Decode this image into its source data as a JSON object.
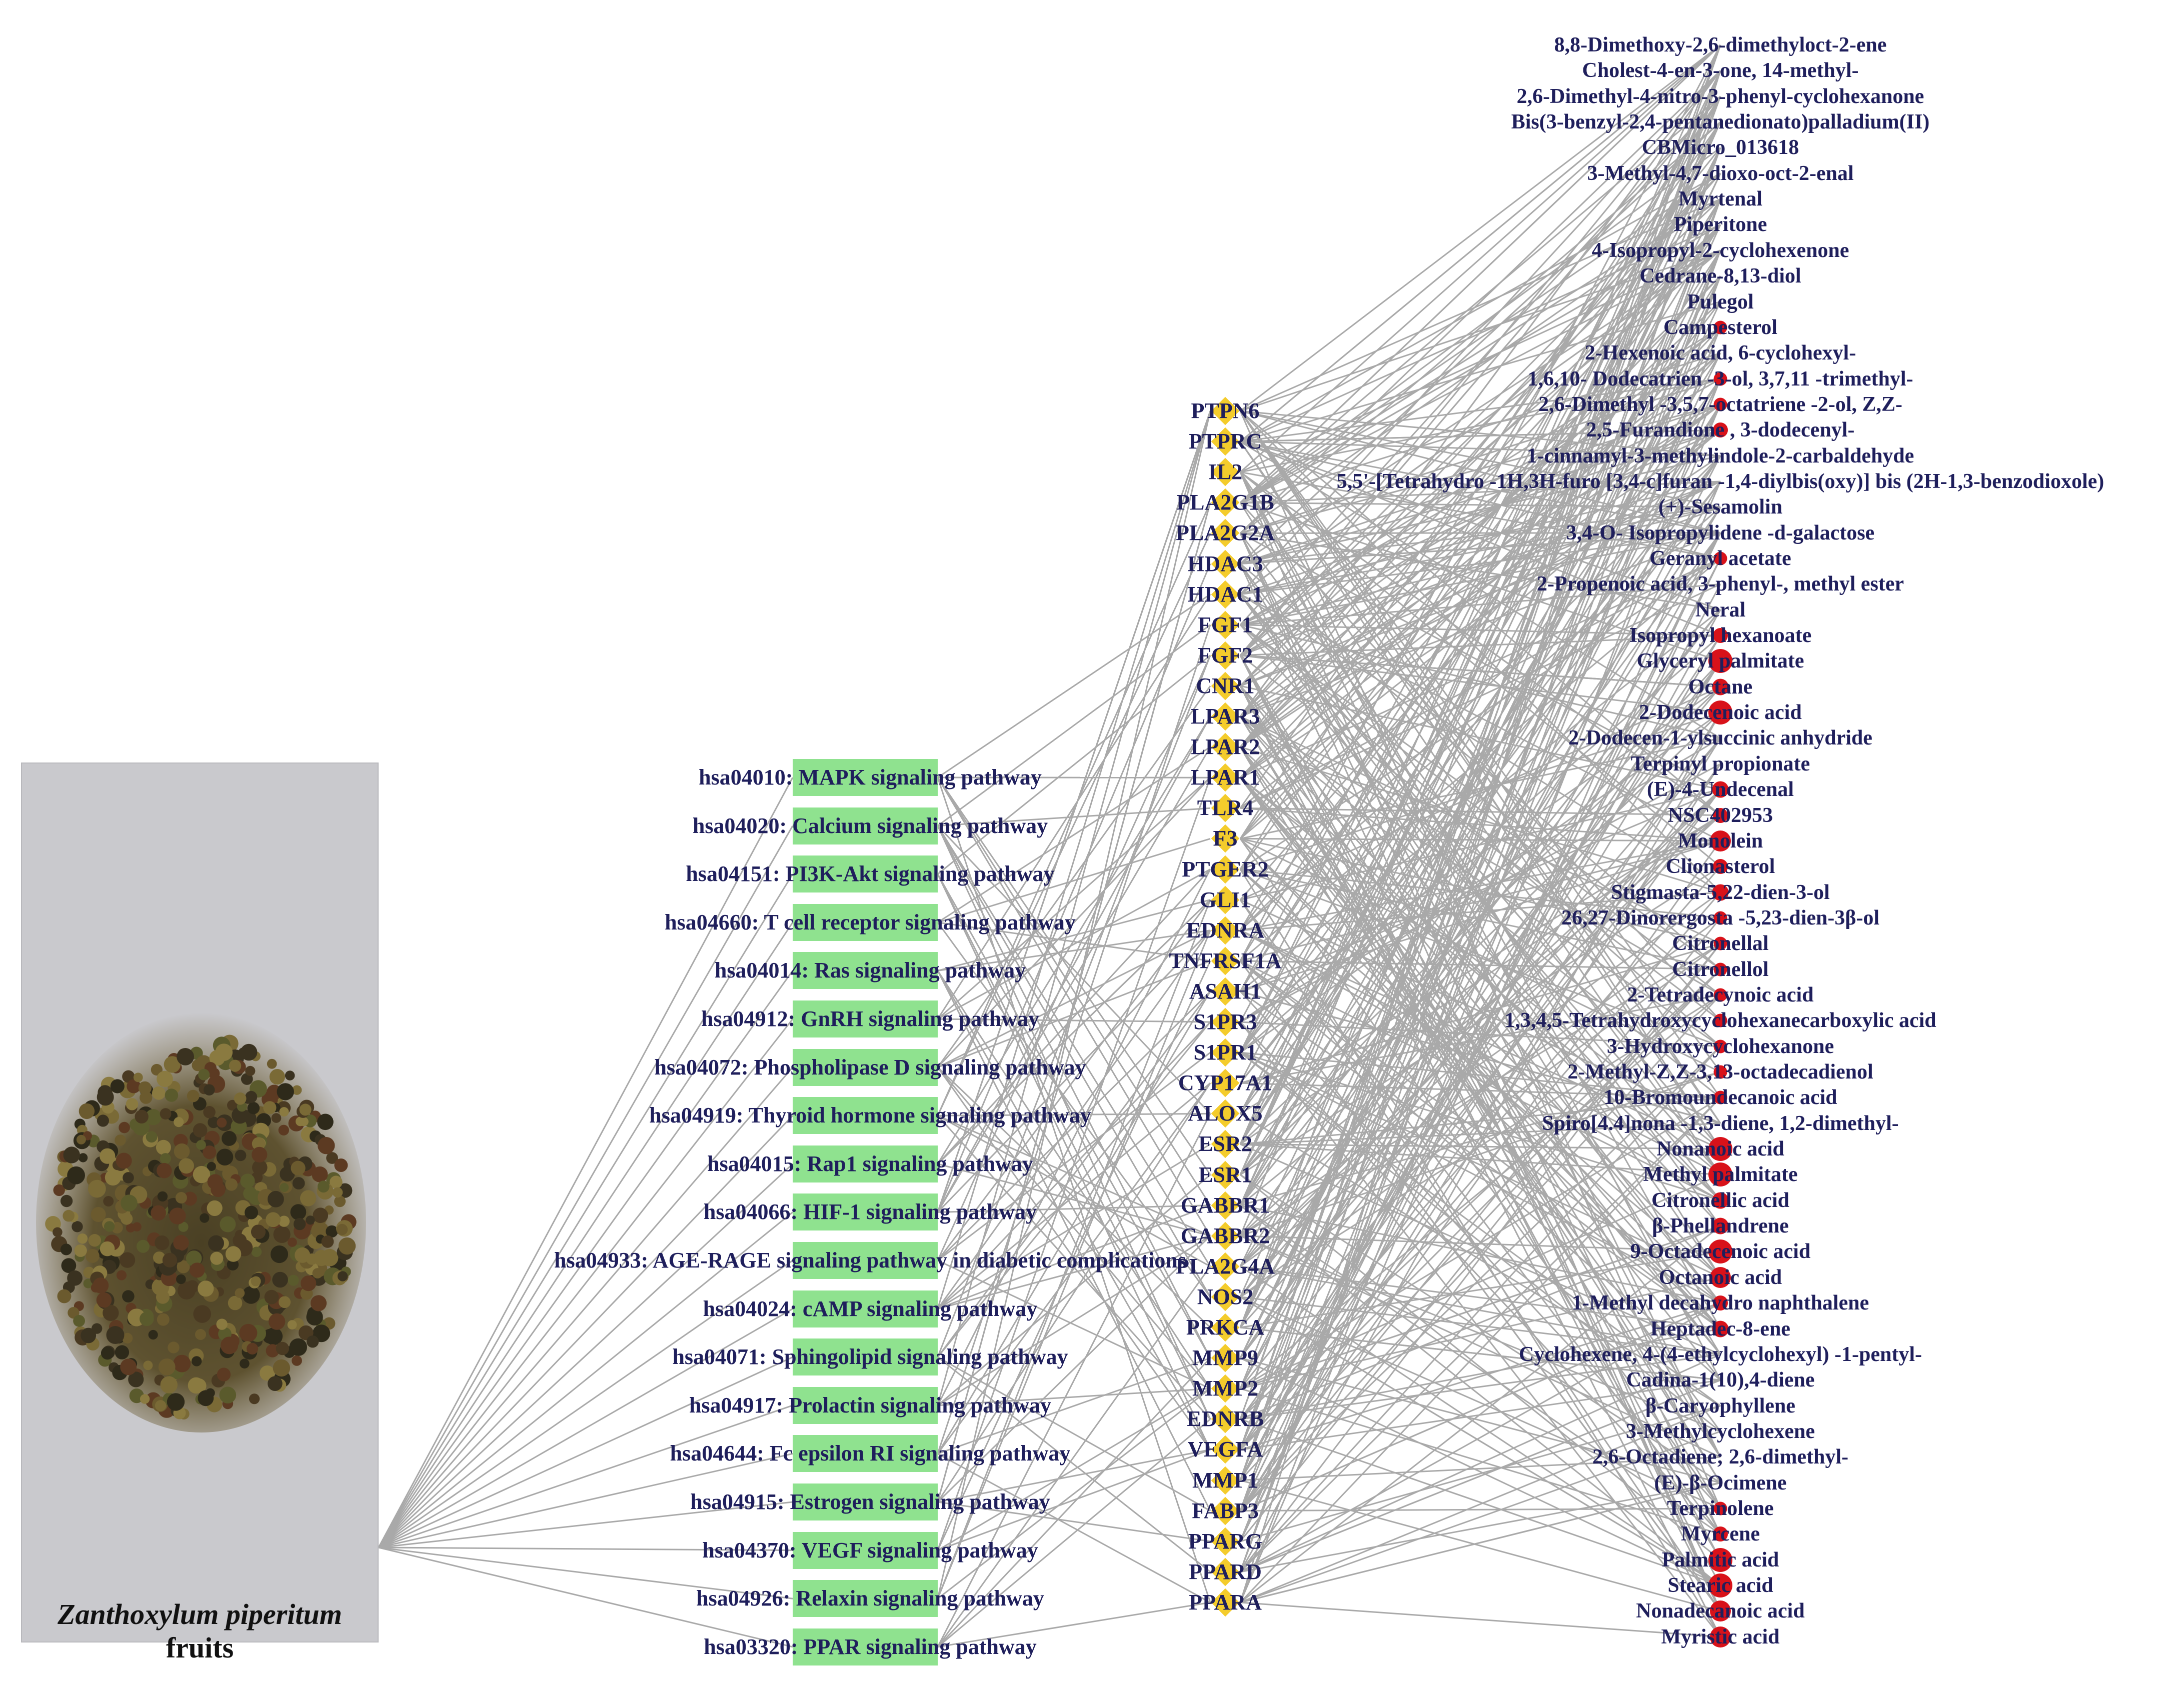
{
  "photo": {
    "caption_species": "Zanthoxylum piperitum",
    "caption_rest": " fruits",
    "icon": "dried-fruit-photo"
  },
  "colors": {
    "edge": "#a9a9a9",
    "pathway_node": "#8fe28f",
    "target_node": "#f4cc2c",
    "compound_node": "#d8121a",
    "label": "#1f1f5c"
  },
  "pathways": [
    "hsa04010: MAPK signaling pathway",
    "hsa04020: Calcium signaling pathway",
    "hsa04151: PI3K-Akt signaling pathway",
    "hsa04660: T cell receptor signaling pathway",
    "hsa04014: Ras signaling pathway",
    "hsa04912: GnRH signaling pathway",
    "hsa04072: Phospholipase D signaling pathway",
    "hsa04919: Thyroid hormone signaling pathway",
    "hsa04015: Rap1 signaling pathway",
    "hsa04066: HIF-1 signaling pathway",
    "hsa04933: AGE-RAGE signaling pathway in diabetic complications",
    "hsa04024: cAMP signaling pathway",
    "hsa04071: Sphingolipid signaling pathway",
    "hsa04917: Prolactin signaling pathway",
    "hsa04644: Fc epsilon RI signaling pathway",
    "hsa04915: Estrogen signaling pathway",
    "hsa04370: VEGF signaling pathway",
    "hsa04926: Relaxin signaling pathway",
    "hsa03320: PPAR signaling pathway"
  ],
  "targets": [
    "PTPN6",
    "PTPRC",
    "IL2",
    "PLA2G1B",
    "PLA2G2A",
    "HDAC3",
    "HDAC1",
    "FGF1",
    "FGF2",
    "CNR1",
    "LPAR3",
    "LPAR2",
    "LPAR1",
    "TLR4",
    "F3",
    "PTGER2",
    "GLI1",
    "EDNRA",
    "TNFRSF1A",
    "ASAH1",
    "S1PR3",
    "S1PR1",
    "CYP17A1",
    "ALOX5",
    "ESR2",
    "ESR1",
    "GABBR1",
    "GABBR2",
    "PLA2G4A",
    "NOS2",
    "PRKCA",
    "MMP9",
    "MMP2",
    "EDNRB",
    "VEGFA",
    "MMP1",
    "FABP3",
    "PPARG",
    "PPARD",
    "PPARA"
  ],
  "compounds": [
    "8,8-Dimethoxy-2,6-dimethyloct-2-ene",
    "Cholest-4-en-3-one, 14-methyl-",
    "2,6-Dimethyl-4-nitro-3-phenyl-cyclohexanone",
    "Bis(3-benzyl-2,4-pentanedionato)palladium(II)",
    "CBMicro_013618",
    "3-Methyl-4,7-dioxo-oct-2-enal",
    "Myrtenal",
    "Piperitone",
    "4-Isopropyl-2-cyclohexenone",
    "Cedrane-8,13-diol",
    "Pulegol",
    "Campesterol",
    "2-Hexenoic acid, 6-cyclohexyl-",
    "1,6,10- Dodecatrien -3-ol, 3,7,11 -trimethyl-",
    "2,6-Dimethyl -3,5,7-octatriene -2-ol, Z,Z-",
    "2,5-Furandione , 3-dodecenyl-",
    "1-cinnamyl-3-methylindole-2-carbaldehyde",
    "5,5'-[Tetrahydro -1H,3H-furo [3,4-c]furan -1,4-diylbis(oxy)] bis (2H-1,3-benzodioxole)",
    "(+)-Sesamolin",
    "3,4-O- Isopropylidene -d-galactose",
    "Geranyl acetate",
    "2-Propenoic acid, 3-phenyl-, methyl ester",
    "Neral",
    "Isopropyl hexanoate",
    "Glyceryl palmitate",
    "Octane",
    "2-Dodecenoic acid",
    "2-Dodecen-1-ylsuccinic anhydride",
    "Terpinyl propionate",
    "(E)-4-Undecenal",
    "NSC402953",
    "Monolein",
    "Clionasterol",
    "Stigmasta-5,22-dien-3-ol",
    "26,27-Dinorergosta -5,23-dien-3β-ol",
    "Citronellal",
    "Citronellol",
    "2-Tetradecynoic acid",
    "1,3,4,5-Tetrahydroxycyclohexanecarboxylic acid",
    "3-Hydroxycyclohexanone",
    "2-Methyl-Z,Z-3,13-octadecadienol",
    "10-Bromoundecanoic acid",
    "Spiro[4.4]nona -1,3-diene, 1,2-dimethyl-",
    "Nonanoic acid",
    "Methyl palmitate",
    "Citronellic acid",
    "β-Phellandrene",
    "9-Octadecenoic acid",
    "Octanoic acid",
    "1-Methyl decahydro naphthalene",
    "Heptadec-8-ene",
    "Cyclohexene, 4-(4-ethylcyclohexyl) -1-pentyl-",
    "Cadina-1(10),4-diene",
    "β-Caryophyllene",
    "3-Methylcyclohexene",
    "2,6-Octadiene; 2,6-dimethyl-",
    "(E)-β-Ocimene",
    "Terpinolene",
    "Myrcene",
    "Palmitic acid",
    "Stearic acid",
    "Nonadecanoic acid",
    "Myristic acid"
  ],
  "compound_dot_sizes": [
    0,
    0,
    0,
    0,
    0,
    0,
    0,
    0,
    0,
    0,
    0,
    0.3,
    0,
    0.3,
    0.3,
    0.4,
    0,
    0,
    0,
    0,
    0.3,
    0,
    0,
    0.4,
    1,
    0.5,
    1,
    0,
    0,
    0.5,
    0.4,
    0.8,
    0.4,
    0.5,
    0.3,
    0.3,
    0.3,
    0.3,
    0.3,
    0.3,
    0.3,
    0.3,
    0,
    1,
    1,
    0.5,
    0.5,
    1,
    0.8,
    0.4,
    0.5,
    0,
    0,
    0,
    0,
    0,
    0,
    0.3,
    0.4,
    1,
    1,
    0.8,
    0.8
  ]
}
